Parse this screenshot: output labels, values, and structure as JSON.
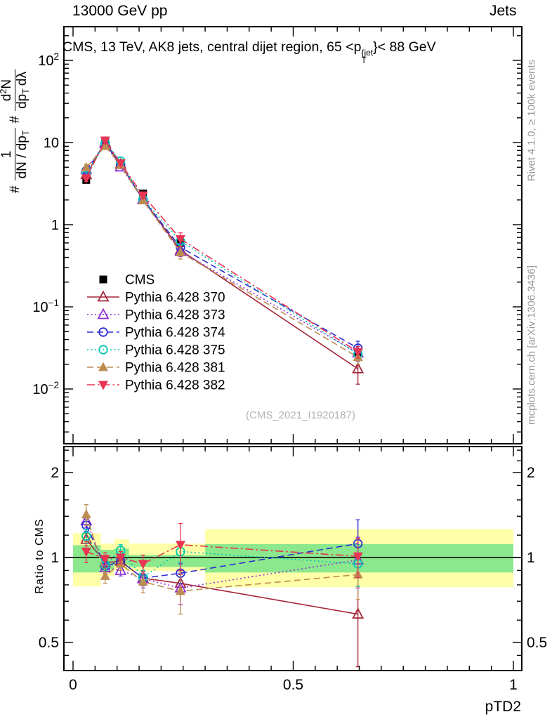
{
  "header": {
    "left": "13000 GeV pp",
    "right": "Jets"
  },
  "subtitle": {
    "prefix": "CMS, 13 TeV, AK8 jets, central dijet region, 65 <p",
    "sup": "{jet",
    "sub": "T",
    "suffix": "}< 88 GeV"
  },
  "ylabel": {
    "hash1": "#",
    "f1_num": "1",
    "f1_den": "dN / dp",
    "f1_den_sub": "T",
    "hash2": "#",
    "f2_num_a": "d",
    "f2_num_sup": "2",
    "f2_num_b": "N",
    "f2_den_a": "dp",
    "f2_den_sub": "T",
    "f2_den_b": "dλ"
  },
  "ratio_ylabel": "Ratio to CMS",
  "xlabel": "pTD2",
  "watermark": "(CMS_2021_I1920187)",
  "side_notes": {
    "top": "Rivet 4.1.0, ≥ 100k events",
    "bottom": "mcplots.cern.ch [arXiv:1306.3436]"
  },
  "chart_data": {
    "type": "line",
    "title": "CMS, 13 TeV, AK8 jets, central dijet region, 65 <pT{jet}< 88 GeV",
    "xlabel": "pTD2",
    "x_values": [
      0.03,
      0.073,
      0.108,
      0.159,
      0.244,
      0.647
    ],
    "xlim": [
      0,
      1
    ],
    "main_ylog_range": [
      0.00225,
      252
    ],
    "ratio_ylog_range": [
      0.4,
      2.49
    ],
    "x_ticks": {
      "minor_step": 0.05,
      "labels": [
        {
          "v": 0,
          "t": "0"
        },
        {
          "v": 0.5,
          "t": "0.5"
        },
        {
          "v": 1,
          "t": "1"
        }
      ]
    },
    "main_y_ticks": [
      {
        "v": 100,
        "base": "10",
        "exp": "2"
      },
      {
        "v": 10,
        "base": "10",
        "exp": ""
      },
      {
        "v": 1,
        "base": "1",
        "exp": ""
      },
      {
        "v": 0.1,
        "base": "10",
        "exp": "−1"
      },
      {
        "v": 0.01,
        "base": "10",
        "exp": "−2"
      }
    ],
    "ratio_y_ticks": [
      {
        "v": 2,
        "t": "2"
      },
      {
        "v": 1,
        "t": "1"
      },
      {
        "v": 0.5,
        "t": "0.5"
      }
    ],
    "ratio_y_minor": [
      0.45,
      0.6,
      0.7,
      0.8,
      0.9,
      1.2,
      1.4,
      1.6,
      1.8,
      2.2,
      2.4
    ],
    "band_colors": {
      "yellow": "#ffffa8",
      "green": "#8ce88c"
    },
    "bands": [
      {
        "x": [
          0.0,
          0.063
        ],
        "yellow": [
          0.79,
          1.22
        ],
        "green": [
          0.885,
          1.105
        ]
      },
      {
        "x": [
          0.063,
          0.093
        ],
        "yellow": [
          0.86,
          1.12
        ],
        "green": [
          0.905,
          1.065
        ]
      },
      {
        "x": [
          0.093,
          0.127
        ],
        "yellow": [
          0.9,
          1.16
        ],
        "green": [
          0.94,
          1.075
        ]
      },
      {
        "x": [
          0.127,
          0.3
        ],
        "yellow": [
          0.895,
          1.12
        ],
        "green": [
          0.925,
          1.02
        ]
      },
      {
        "x": [
          0.3,
          1.0
        ],
        "yellow": [
          0.785,
          1.26
        ],
        "green": [
          0.885,
          1.115
        ]
      }
    ],
    "series": [
      {
        "name": "CMS",
        "color": "#000000",
        "line": "none",
        "marker": "square-filled",
        "values": [
          3.5,
          10.5,
          5.6,
          2.4,
          0.6,
          0.028
        ],
        "err_rel": 0.04
      },
      {
        "name": "Pythia 6.428 370",
        "color": "#a32638",
        "line": "solid",
        "marker": "triangle-up-open",
        "values": [
          4.06,
          10.0,
          5.43,
          2.03,
          0.49,
          0.0176
        ],
        "ratio": [
          1.16,
          0.96,
          0.97,
          0.845,
          0.81,
          0.63
        ],
        "ratio_err": [
          0.06,
          0.04,
          0.04,
          0.05,
          0.06,
          0.22
        ]
      },
      {
        "name": "Pythia 6.428 373",
        "color": "#8f2fd6",
        "line": "dotted",
        "marker": "triangle-up-open",
        "values": [
          4.73,
          9.66,
          5.04,
          2.02,
          0.47,
          0.0274
        ],
        "ratio": [
          1.35,
          0.92,
          0.9,
          0.84,
          0.78,
          0.98
        ],
        "ratio_err": [
          0.07,
          0.04,
          0.04,
          0.06,
          0.1,
          0.2
        ]
      },
      {
        "name": "Pythia 6.428 374",
        "color": "#2f2fd0",
        "line": "dashed",
        "marker": "circle-open",
        "values": [
          4.55,
          9.76,
          5.43,
          2.03,
          0.53,
          0.0314
        ],
        "ratio": [
          1.3,
          0.93,
          0.97,
          0.845,
          0.88,
          1.12
        ],
        "ratio_err": [
          0.06,
          0.04,
          0.04,
          0.05,
          0.07,
          0.24
        ]
      },
      {
        "name": "Pythia 6.428 375",
        "color": "#00c8b0",
        "line": "dotted",
        "marker": "circle-open",
        "values": [
          4.17,
          9.87,
          5.94,
          2.04,
          0.63,
          0.0266
        ],
        "ratio": [
          1.19,
          0.94,
          1.06,
          0.85,
          1.05,
          0.95
        ],
        "ratio_err": [
          0.07,
          0.04,
          0.05,
          0.05,
          0.09,
          0.16
        ]
      },
      {
        "name": "Pythia 6.428 381",
        "color": "#bd8c52",
        "line": "dashed",
        "marker": "triangle-up-filled",
        "values": [
          4.97,
          9.03,
          5.32,
          1.97,
          0.46,
          0.0244
        ],
        "ratio": [
          1.42,
          0.86,
          0.95,
          0.82,
          0.76,
          0.87
        ],
        "ratio_err": [
          0.12,
          0.05,
          0.05,
          0.07,
          0.13,
          0.16
        ]
      },
      {
        "name": "Pythia 6.428 382",
        "color": "#e93453",
        "line": "dashdot",
        "marker": "triangle-down-filled",
        "values": [
          3.68,
          10.6,
          5.6,
          2.28,
          0.67,
          0.0283
        ],
        "ratio": [
          1.05,
          0.99,
          1.0,
          0.95,
          1.11,
          1.01
        ],
        "ratio_err": [
          0.09,
          0.05,
          0.05,
          0.07,
          0.21,
          0.16
        ]
      }
    ],
    "legend_position": "middle-left",
    "grid": false
  }
}
